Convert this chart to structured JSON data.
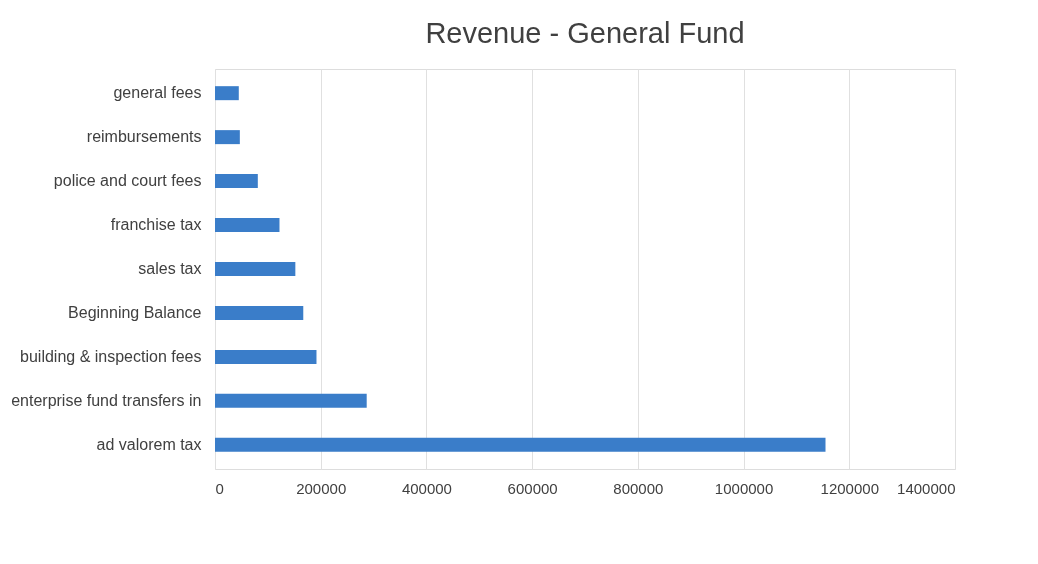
{
  "chart_data": {
    "type": "bar",
    "orientation": "horizontal",
    "title": "Revenue - General Fund",
    "categories": [
      "general fees",
      "reimbursements",
      "police and court fees",
      "franchise tax",
      "sales tax",
      "Beginning Balance",
      "building  & inspection fees",
      "enterprise fund transfers in",
      "ad valorem tax"
    ],
    "values": [
      45000,
      47000,
      81000,
      122000,
      152000,
      167000,
      192000,
      287000,
      1155000
    ],
    "color": "#3a7dc9",
    "xlim": [
      0,
      1400000
    ],
    "xticks": [
      0,
      200000,
      400000,
      600000,
      800000,
      1000000,
      1200000,
      1400000
    ],
    "grid": "x"
  }
}
